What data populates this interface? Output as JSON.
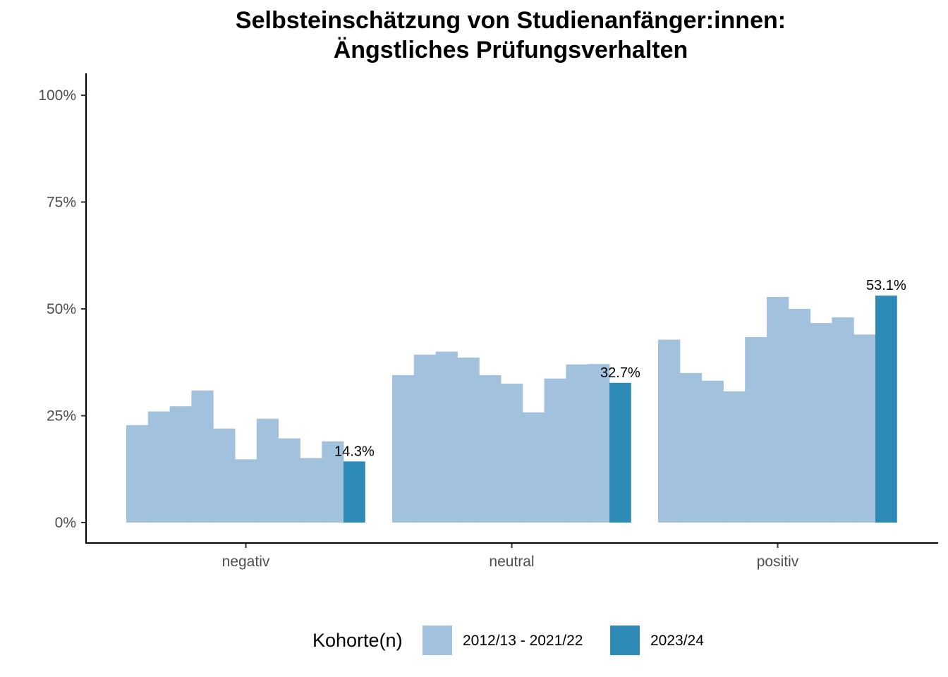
{
  "chart_data": {
    "type": "bar",
    "title": [
      "Selbsteinschätzung von Studienanfänger:innen:",
      "Ängstliches Prüfungsverhalten"
    ],
    "categories": [
      "negativ",
      "neutral",
      "positiv"
    ],
    "yticks": [
      "0%",
      "25%",
      "50%",
      "75%",
      "100%"
    ],
    "ylim": [
      0,
      100
    ],
    "grid": false,
    "legend": {
      "title": "Kohorte(n)",
      "position": "bottom",
      "entries": [
        "2012/13 - 2021/22",
        "2023/24"
      ]
    },
    "series": [
      {
        "name": "2012/13 - 2021/22",
        "color": "#a1c1dd",
        "values": [
          [
            22.8,
            26.0,
            27.2,
            30.9,
            22.0,
            14.8,
            24.3,
            19.7,
            15.1,
            19.0
          ],
          [
            34.5,
            39.3,
            40.0,
            38.6,
            34.5,
            32.5,
            25.8,
            33.7,
            37.0,
            37.1
          ],
          [
            42.8,
            35.0,
            33.2,
            30.7,
            43.4,
            52.8,
            50.0,
            46.7,
            48.0,
            44.0
          ]
        ]
      },
      {
        "name": "2023/24",
        "color": "#2e8bb8",
        "values": [
          14.3,
          32.7,
          53.1
        ],
        "labels": [
          "14.3%",
          "32.7%",
          "53.1%"
        ]
      }
    ]
  }
}
